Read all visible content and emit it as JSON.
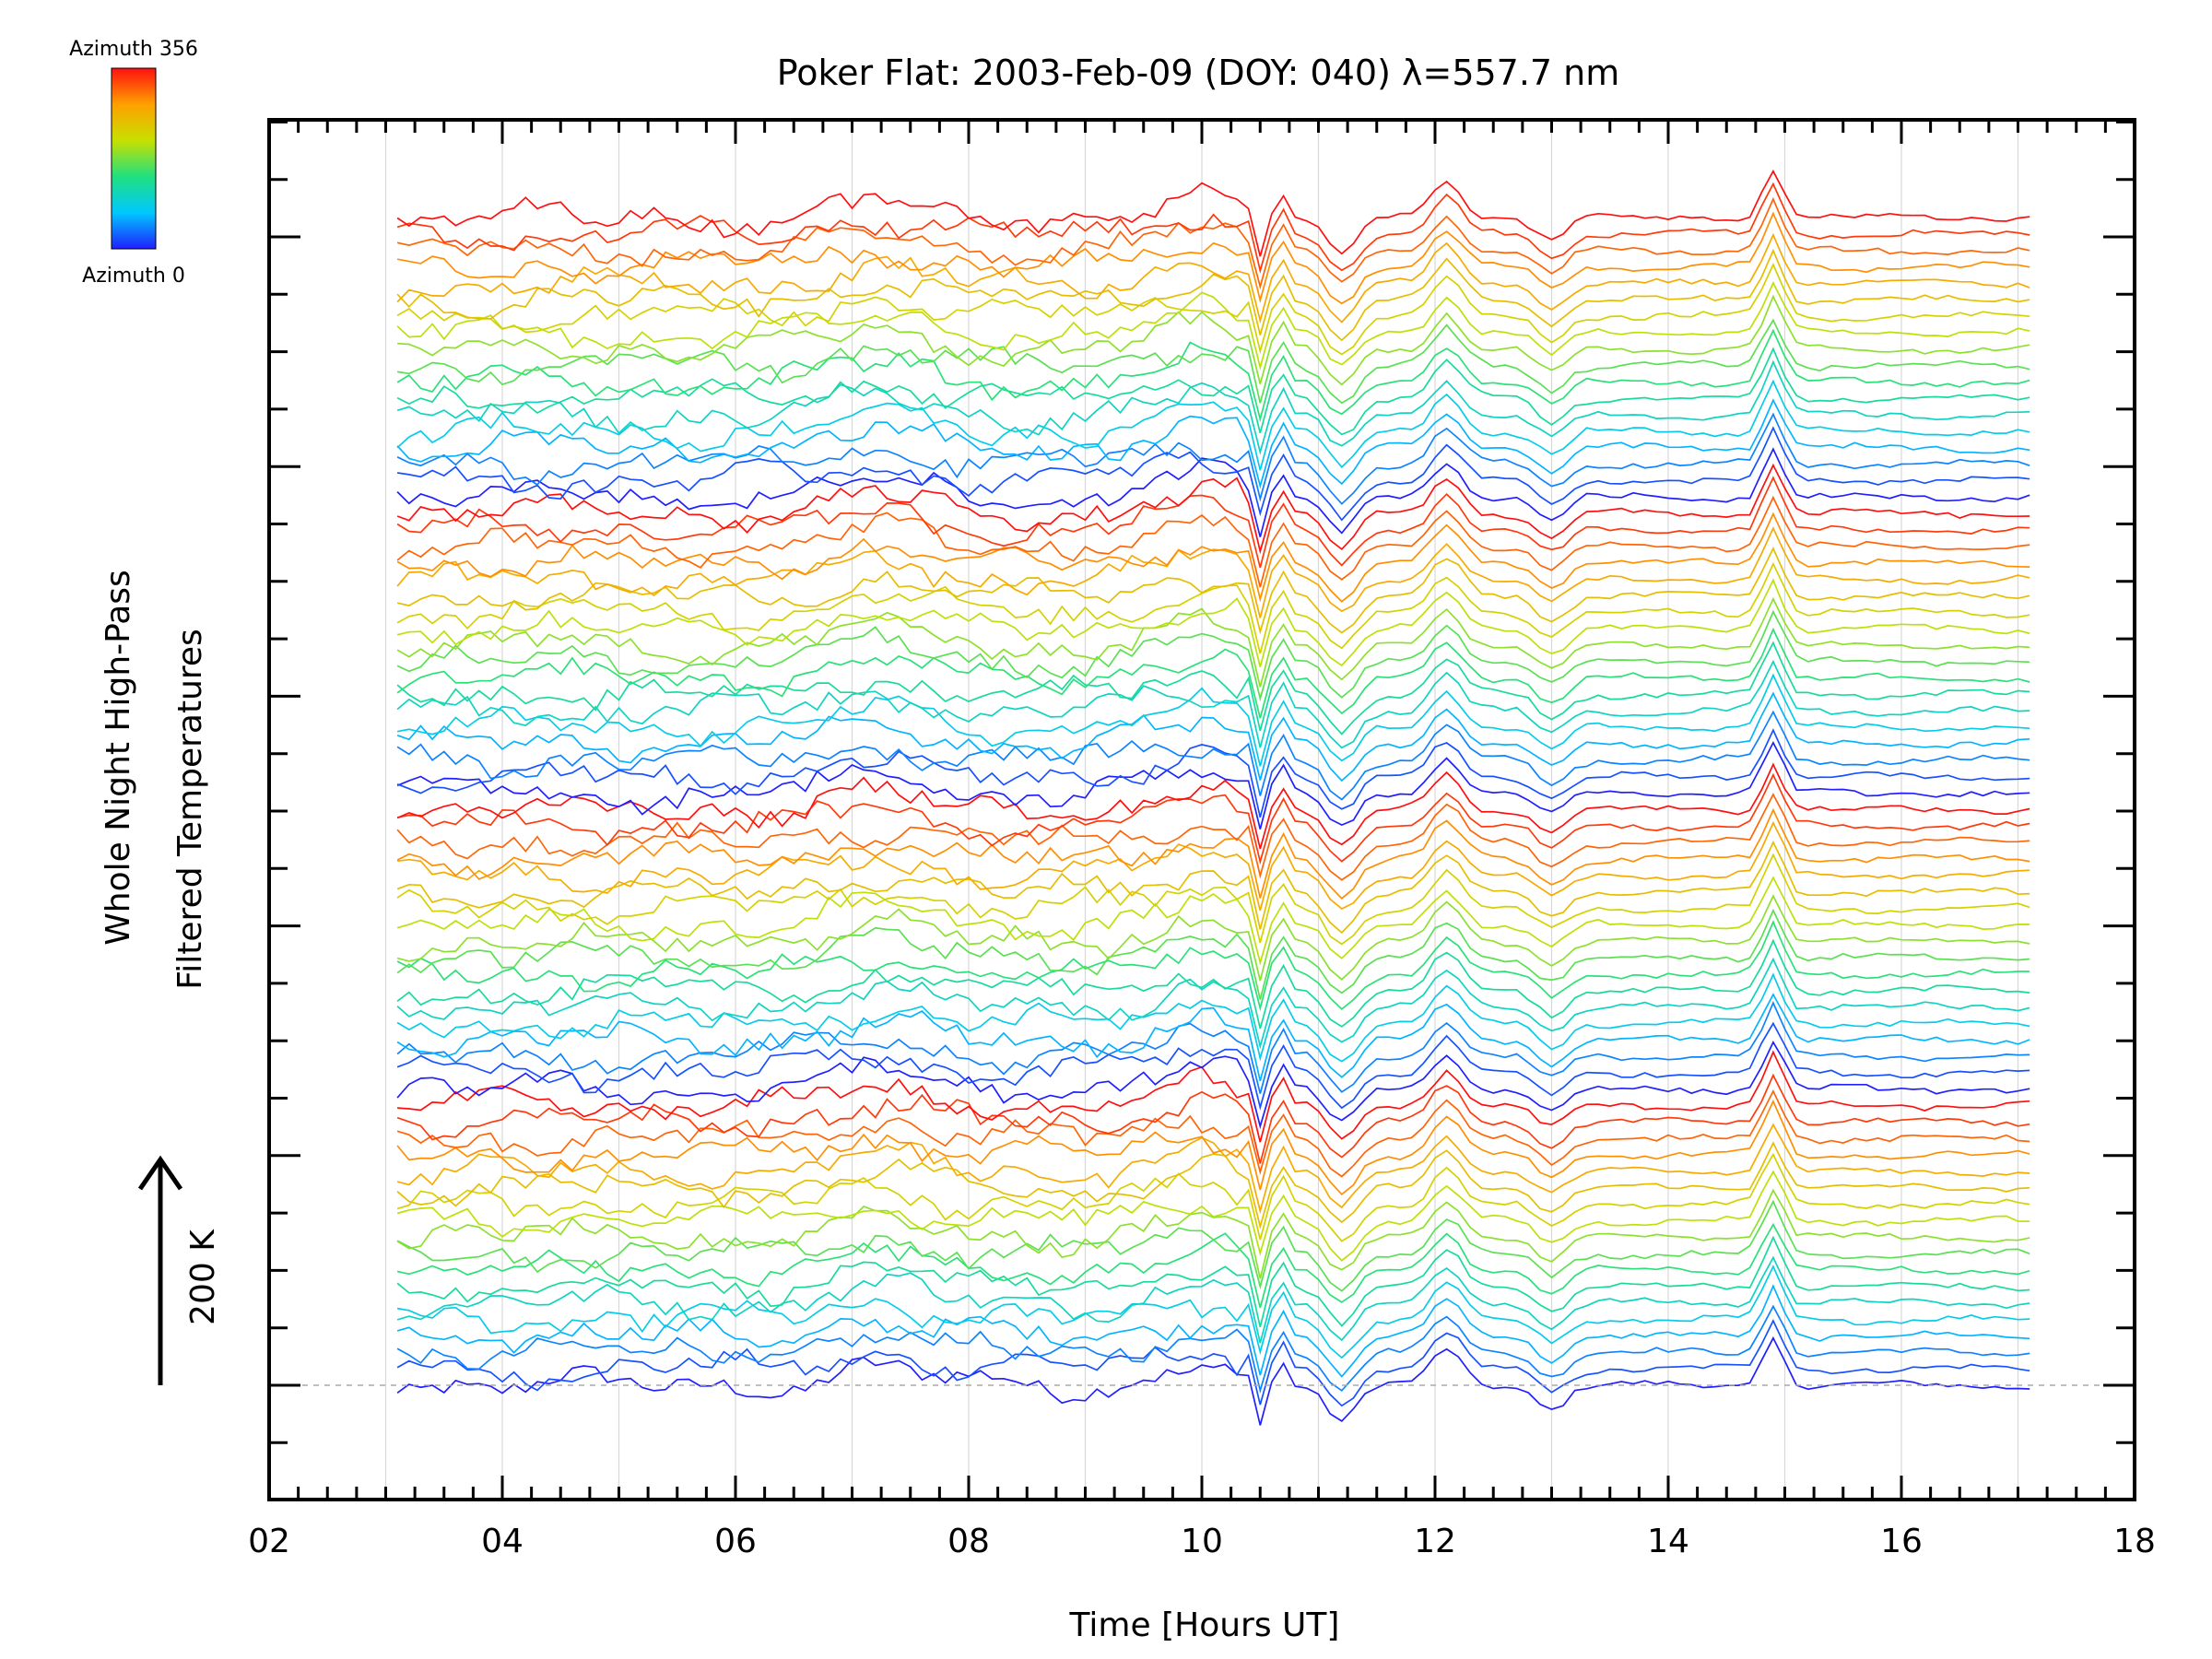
{
  "chart_data": {
    "type": "line",
    "title": "Poker Flat: 2003-Feb-09 (DOY: 040) λ=557.7 nm",
    "xlabel": "Time [Hours UT]",
    "ylabel_line1": "Whole Night High-Pass",
    "ylabel_line2": "Filtered Temperatures",
    "scale_label": "200 K",
    "scale_value_K": 200,
    "xlim": [
      2,
      18
    ],
    "x_ticks": [
      2,
      4,
      6,
      8,
      10,
      12,
      14,
      16,
      18
    ],
    "x_tick_labels": [
      "02",
      "04",
      "06",
      "08",
      "10",
      "12",
      "14",
      "16",
      "18"
    ],
    "y_ticks_unlabeled": true,
    "vertical_grid_hours": [
      3,
      4,
      5,
      6,
      7,
      8,
      9,
      10,
      11,
      12,
      13,
      14,
      15,
      16,
      17
    ],
    "baseline_dashed": true,
    "colorbar": {
      "label_top": "Azimuth 356",
      "label_bottom": "Azimuth 0",
      "azimuth_min": 0,
      "azimuth_max": 356,
      "colormap": "rainbow",
      "stops": [
        "#2020ff",
        "#00c8ff",
        "#20e080",
        "#c8e000",
        "#ffa000",
        "#ff1010"
      ]
    },
    "series_count": 72,
    "series_per_group": 18,
    "time_start": 3.1,
    "time_end": 17.1,
    "time_step": 0.1,
    "offset_K_between_series": 25,
    "features": [
      {
        "time": 10.5,
        "type": "sharp-dip",
        "amplitude_K": -70
      },
      {
        "time": 10.7,
        "type": "oscillation",
        "amplitude_K": 30
      },
      {
        "time": 11.2,
        "type": "dip",
        "amplitude_K": -55
      },
      {
        "time": 12.1,
        "type": "peak",
        "amplitude_K": 55
      },
      {
        "time": 13.0,
        "type": "dip",
        "amplitude_K": -35
      },
      {
        "time": 14.9,
        "type": "peak",
        "amplitude_K": 75
      },
      {
        "time": 10.0,
        "type": "broad-peak",
        "amplitude_K": 30
      },
      {
        "time": 7.2,
        "type": "broad-peak",
        "amplitude_K": 25
      }
    ]
  }
}
